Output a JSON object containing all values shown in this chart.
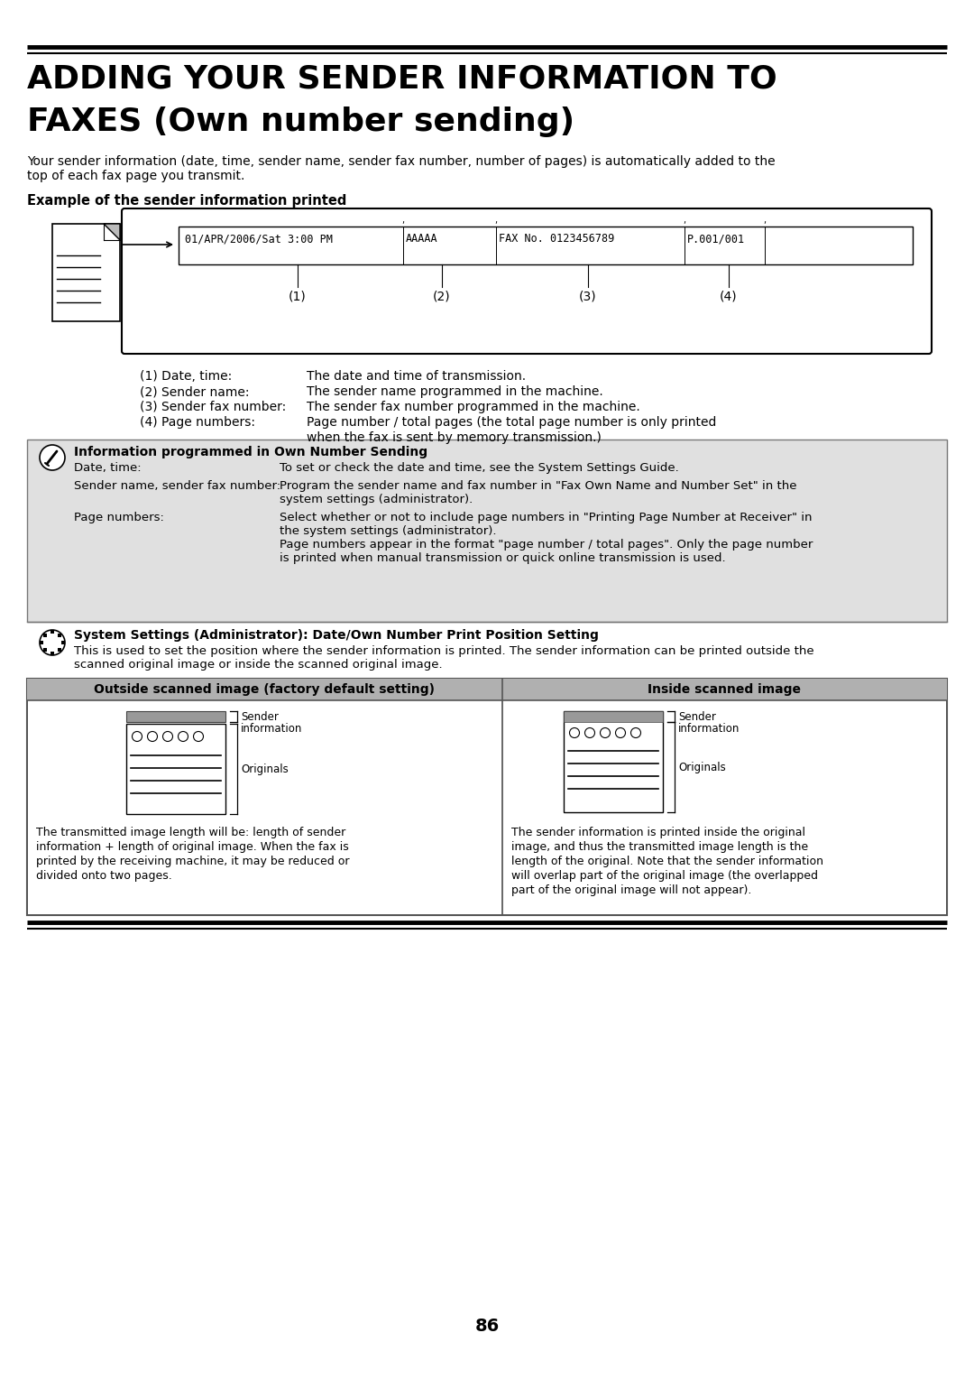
{
  "title_line1": "ADDING YOUR SENDER INFORMATION TO",
  "title_line2": "FAXES (Own number sending)",
  "intro_text": "Your sender information (date, time, sender name, sender fax number, number of pages) is automatically added to the\ntop of each fax page you transmit.",
  "example_label": "Example of the sender information printed",
  "labels_1234": [
    "(1)",
    "(2)",
    "(3)",
    "(4)"
  ],
  "items": [
    [
      "(1) Date, time:",
      "The date and time of transmission."
    ],
    [
      "(2) Sender name:",
      "The sender name programmed in the machine."
    ],
    [
      "(3) Sender fax number:",
      "The sender fax number programmed in the machine."
    ],
    [
      "(4) Page numbers:",
      "Page number / total pages (the total page number is only printed\nwhen the fax is sent by memory transmission.)"
    ]
  ],
  "note1_title": "Information programmed in Own Number Sending",
  "note1_rows": [
    [
      "Date, time:",
      "To set or check the date and time, see the System Settings Guide."
    ],
    [
      "Sender name, sender fax number:",
      "Program the sender name and fax number in \"Fax Own Name and Number Set\" in the\nsystem settings (administrator)."
    ],
    [
      "Page numbers:",
      "Select whether or not to include page numbers in \"Printing Page Number at Receiver\" in\nthe system settings (administrator).\nPage numbers appear in the format \"page number / total pages\". Only the page number\nis printed when manual transmission or quick online transmission is used."
    ]
  ],
  "note2_title": "System Settings (Administrator): Date/Own Number Print Position Setting",
  "note2_text": "This is used to set the position where the sender information is printed. The sender information can be printed outside the\nscanned original image or inside the scanned original image.",
  "table_header_left": "Outside scanned image (factory default setting)",
  "table_header_right": "Inside scanned image",
  "table_left_text": "The transmitted image length will be: length of sender\ninformation + length of original image. When the fax is\nprinted by the receiving machine, it may be reduced or\ndivided onto two pages.",
  "table_right_text": "The sender information is printed inside the original\nimage, and thus the transmitted image length is the\nlength of the original. Note that the sender information\nwill overlap part of the original image (the overlapped\npart of the original image will not appear).",
  "page_number": "86",
  "bg_color": "#ffffff",
  "note1_bg_color": "#e0e0e0",
  "table_bg_color": "#d8d8d8",
  "border_color": "#000000"
}
